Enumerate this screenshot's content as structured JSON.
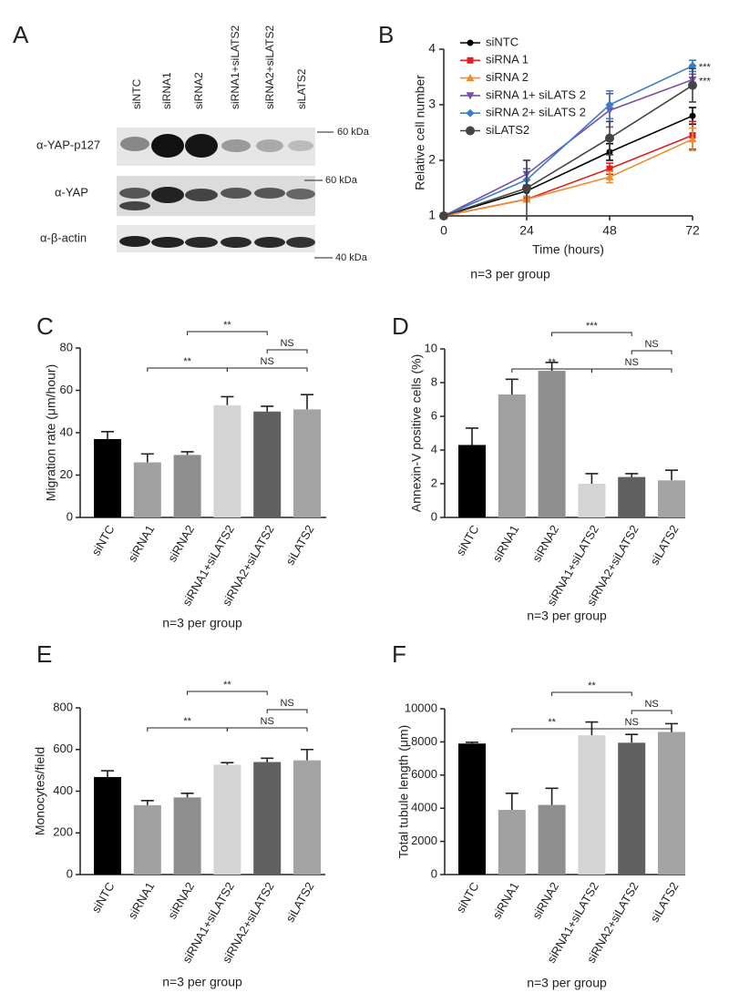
{
  "blot": {
    "label": "A",
    "lanes": [
      "siNTC",
      "siRNA1",
      "siRNA2",
      "siRNA1+siLATS2",
      "siRNA2+siLATS2",
      "siLATS2"
    ],
    "rows": [
      "α-YAP-p127",
      "α-YAP",
      "α-β-actin"
    ],
    "markers": [
      "60 kDa",
      "60 kDa",
      "40 kDa"
    ]
  },
  "chart_data": [
    {
      "type": "line",
      "label": "B",
      "xlabel": "Time (hours)",
      "ylabel": "Relative cell number",
      "note": "n=3 per group",
      "x": [
        0,
        24,
        48,
        72
      ],
      "xlim": [
        0,
        72
      ],
      "xticks": [
        0,
        24,
        48,
        72
      ],
      "ylim": [
        1,
        4
      ],
      "yticks": [
        1,
        2,
        3,
        4
      ],
      "series": [
        {
          "name": "siNTC",
          "color": "#000000",
          "marker": "circle",
          "values": [
            1,
            1.45,
            2.15,
            2.8
          ],
          "errors": [
            null,
            0.1,
            0.15,
            0.15
          ]
        },
        {
          "name": "siRNA 1",
          "color": "#e02020",
          "marker": "square",
          "values": [
            1,
            1.3,
            1.85,
            2.45
          ],
          "errors": [
            null,
            0.05,
            0.1,
            0.25
          ]
        },
        {
          "name": "siRNA 2",
          "color": "#f08a2a",
          "marker": "triangle",
          "values": [
            1,
            1.3,
            1.7,
            2.38
          ],
          "errors": [
            null,
            0.05,
            0.1,
            0.2
          ]
        },
        {
          "name": "siRNA 1+ siLATS 2",
          "color": "#7a4fa8",
          "marker": "triangle-down",
          "values": [
            1,
            1.75,
            2.9,
            3.45
          ],
          "errors": [
            null,
            0.25,
            0.3,
            0.1
          ]
        },
        {
          "name": "siRNA 2+ siLATS 2",
          "color": "#3a7cc8",
          "marker": "diamond",
          "values": [
            1,
            1.65,
            3.0,
            3.7
          ],
          "errors": [
            null,
            0.2,
            0.25,
            0.1
          ]
        },
        {
          "name": "siLATS2",
          "color": "#444444",
          "marker": "circle-large",
          "values": [
            1,
            1.5,
            2.4,
            3.35
          ],
          "errors": [
            null,
            0.5,
            0.3,
            0.3
          ]
        }
      ],
      "annotations": [
        "***",
        "***"
      ]
    },
    {
      "type": "bar",
      "label": "C",
      "ylabel": "Migration rate (μm/hour)",
      "note": "n=3 per group",
      "categories": [
        "siNTC",
        "siRNA1",
        "siRNA2",
        "siRNA1+siLATS2",
        "siRNA2+siLATS2",
        "siLATS2"
      ],
      "values": [
        37,
        26,
        29.5,
        53,
        50,
        51
      ],
      "errors": [
        3.5,
        4,
        1.5,
        4,
        2.5,
        7
      ],
      "colors": [
        "#000000",
        "#a0a0a0",
        "#8e8e8e",
        "#d4d4d4",
        "#606060",
        "#a3a3a3"
      ],
      "ylim": [
        0,
        80
      ],
      "yticks": [
        0,
        20,
        40,
        60,
        80
      ],
      "brackets": [
        {
          "label": "**",
          "between": [
            "siRNA1",
            "siRNA1+siLATS2"
          ]
        },
        {
          "label": "NS",
          "between": [
            "siRNA1+siLATS2",
            "siLATS2"
          ]
        },
        {
          "label": "NS",
          "between": [
            "siRNA2+siLATS2",
            "siLATS2"
          ]
        },
        {
          "label": "**",
          "between": [
            "siRNA2",
            "siRNA2+siLATS2"
          ]
        }
      ]
    },
    {
      "type": "bar",
      "label": "D",
      "ylabel": "Annexin-V positive cells (%)",
      "note": "n=3 per group",
      "categories": [
        "siNTC",
        "siRNA1",
        "siRNA2",
        "siRNA1+siLATS2",
        "siRNA2+siLATS2",
        "siLATS2"
      ],
      "values": [
        4.3,
        7.3,
        8.7,
        2.0,
        2.4,
        2.2
      ],
      "errors": [
        1.0,
        0.9,
        0.5,
        0.6,
        0.2,
        0.6
      ],
      "colors": [
        "#000000",
        "#a0a0a0",
        "#8e8e8e",
        "#d4d4d4",
        "#606060",
        "#a3a3a3"
      ],
      "ylim": [
        0,
        10
      ],
      "yticks": [
        0,
        2,
        4,
        6,
        8,
        10
      ],
      "brackets": [
        {
          "label": "**",
          "between": [
            "siRNA1",
            "siRNA1+siLATS2"
          ]
        },
        {
          "label": "NS",
          "between": [
            "siRNA1+siLATS2",
            "siLATS2"
          ]
        },
        {
          "label": "NS",
          "between": [
            "siRNA2+siLATS2",
            "siLATS2"
          ]
        },
        {
          "label": "***",
          "between": [
            "siRNA2",
            "siRNA2+siLATS2"
          ]
        }
      ]
    },
    {
      "type": "bar",
      "label": "E",
      "ylabel": "Monocytes/field",
      "note": "n=3 per group",
      "categories": [
        "siNTC",
        "siRNA1",
        "siRNA2",
        "siRNA1+siLATS2",
        "siRNA2+siLATS2",
        "siLATS2"
      ],
      "values": [
        468,
        333,
        370,
        527,
        540,
        548
      ],
      "errors": [
        30,
        22,
        20,
        10,
        18,
        52
      ],
      "colors": [
        "#000000",
        "#a0a0a0",
        "#8e8e8e",
        "#d4d4d4",
        "#606060",
        "#a3a3a3"
      ],
      "ylim": [
        0,
        800
      ],
      "yticks": [
        0,
        200,
        400,
        600,
        800
      ],
      "brackets": [
        {
          "label": "**",
          "between": [
            "siRNA1",
            "siRNA1+siLATS2"
          ]
        },
        {
          "label": "NS",
          "between": [
            "siRNA1+siLATS2",
            "siLATS2"
          ]
        },
        {
          "label": "NS",
          "between": [
            "siRNA2+siLATS2",
            "siLATS2"
          ]
        },
        {
          "label": "**",
          "between": [
            "siRNA2",
            "siRNA2+siLATS2"
          ]
        }
      ]
    },
    {
      "type": "bar",
      "label": "F",
      "ylabel": "Total tubule length (μm)",
      "note": "n=3 per group",
      "categories": [
        "siNTC",
        "siRNA1",
        "siRNA2",
        "siRNA1+siLATS2",
        "siRNA2+siLATS2",
        "siLATS2"
      ],
      "values": [
        7900,
        3900,
        4200,
        8400,
        7950,
        8600
      ],
      "errors": [
        80,
        1000,
        1000,
        800,
        500,
        500
      ],
      "colors": [
        "#000000",
        "#a0a0a0",
        "#8e8e8e",
        "#d4d4d4",
        "#606060",
        "#a3a3a3"
      ],
      "ylim": [
        0,
        10000
      ],
      "yticks": [
        0,
        2000,
        4000,
        6000,
        8000,
        10000
      ],
      "brackets": [
        {
          "label": "**",
          "between": [
            "siRNA1",
            "siRNA1+siLATS2"
          ]
        },
        {
          "label": "NS",
          "between": [
            "siRNA1+siLATS2",
            "siLATS2"
          ]
        },
        {
          "label": "NS",
          "between": [
            "siRNA2+siLATS2",
            "siLATS2"
          ]
        },
        {
          "label": "**",
          "between": [
            "siRNA2",
            "siRNA2+siLATS2"
          ]
        }
      ]
    }
  ]
}
